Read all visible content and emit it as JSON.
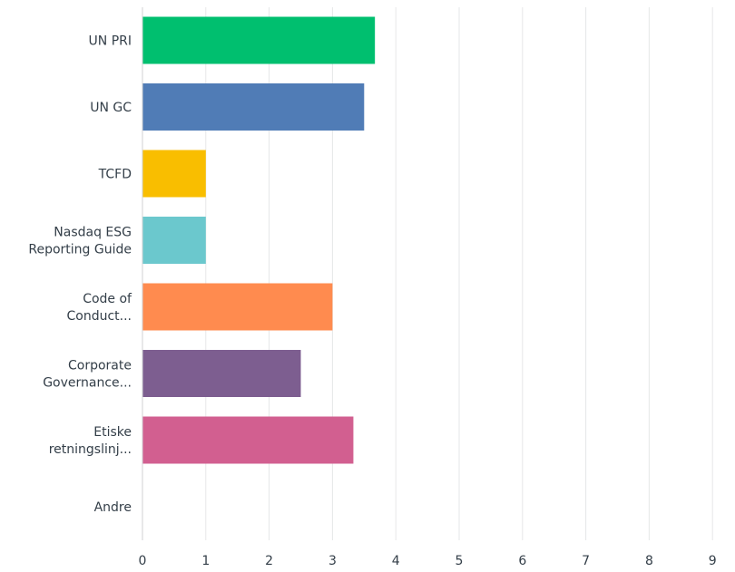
{
  "chart_data": {
    "type": "bar",
    "orientation": "horizontal",
    "categories": [
      [
        "UN PRI"
      ],
      [
        "UN GC"
      ],
      [
        "TCFD"
      ],
      [
        "Nasdaq ESG",
        "Reporting Guide"
      ],
      [
        "Code of",
        "Conduct..."
      ],
      [
        "Corporate",
        "Governance..."
      ],
      [
        "Etiske",
        "retningslinj..."
      ],
      [
        "Andre"
      ]
    ],
    "values": [
      3.67,
      3.5,
      1.0,
      1.0,
      3.0,
      2.5,
      3.33,
      0
    ],
    "colors": [
      "#00bf6f",
      "#507cb6",
      "#f9be00",
      "#6bc8cd",
      "#ff8b4f",
      "#7d5e90",
      "#d25f90",
      "#dee1e3"
    ],
    "xlim": [
      0,
      9
    ],
    "xticks": [
      0,
      1,
      2,
      3,
      4,
      5,
      6,
      7,
      8,
      9
    ],
    "grid": true,
    "legend": "none"
  }
}
